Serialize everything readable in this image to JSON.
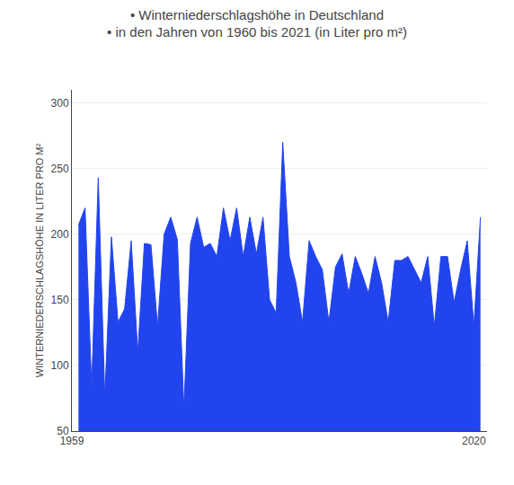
{
  "chart_data": {
    "type": "area",
    "title": "• Winterniederschlagshöhe in Deutschland",
    "subtitle": "• in den Jahren von 1960 bis 2021 (in Liter pro m²)",
    "ylabel": "WINTERNIEDERSCHLAGSHÖHE IN LITER PRO M²",
    "x": [
      1960,
      1961,
      1962,
      1963,
      1964,
      1965,
      1966,
      1967,
      1968,
      1969,
      1970,
      1971,
      1972,
      1973,
      1974,
      1975,
      1976,
      1977,
      1978,
      1979,
      1980,
      1981,
      1982,
      1983,
      1984,
      1985,
      1986,
      1987,
      1988,
      1989,
      1990,
      1991,
      1992,
      1993,
      1994,
      1995,
      1996,
      1997,
      1998,
      1999,
      2000,
      2001,
      2002,
      2003,
      2004,
      2005,
      2006,
      2007,
      2008,
      2009,
      2010,
      2011,
      2012,
      2013,
      2014,
      2015,
      2016,
      2017,
      2018,
      2019,
      2020,
      2021
    ],
    "values": [
      207,
      220,
      83,
      243,
      76,
      198,
      133,
      143,
      195,
      110,
      193,
      192,
      130,
      200,
      213,
      196,
      67,
      193,
      213,
      190,
      193,
      183,
      220,
      195,
      220,
      183,
      213,
      185,
      213,
      150,
      140,
      270,
      183,
      163,
      133,
      195,
      183,
      173,
      133,
      175,
      185,
      155,
      183,
      170,
      155,
      183,
      163,
      133,
      180,
      180,
      183,
      173,
      163,
      183,
      130,
      183,
      183,
      148,
      173,
      195,
      130,
      213
    ],
    "color": "#2244ee",
    "xlim": [
      1959,
      2022
    ],
    "xticks": [
      1959,
      2020
    ],
    "ylim": [
      50,
      310
    ],
    "yticks": [
      50,
      100,
      150,
      200,
      250,
      300
    ],
    "grid": true
  }
}
